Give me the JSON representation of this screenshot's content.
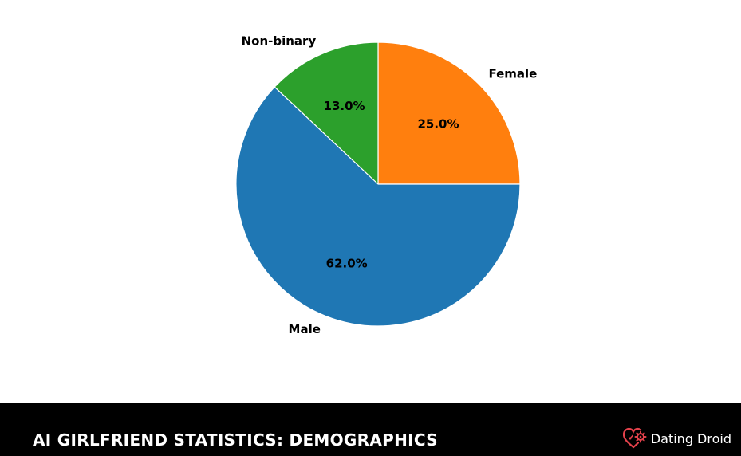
{
  "chart_data": {
    "type": "pie",
    "categories": [
      "Female",
      "Non-binary",
      "Male"
    ],
    "values": [
      25.0,
      13.0,
      62.0
    ],
    "percent_labels": [
      "25.0%",
      "13.0%",
      "62.0%"
    ],
    "colors": [
      "#ff7f0e",
      "#2ca02c",
      "#1f77b4"
    ],
    "start_angle_deg": 0,
    "direction": "counterclockwise"
  },
  "footer": {
    "title": "AI GIRLFRIEND STATISTICS: DEMOGRAPHICS",
    "brand_name": "Dating Droid",
    "brand_color": "#e3414b",
    "brand_icon": "heart-gear-icon"
  }
}
